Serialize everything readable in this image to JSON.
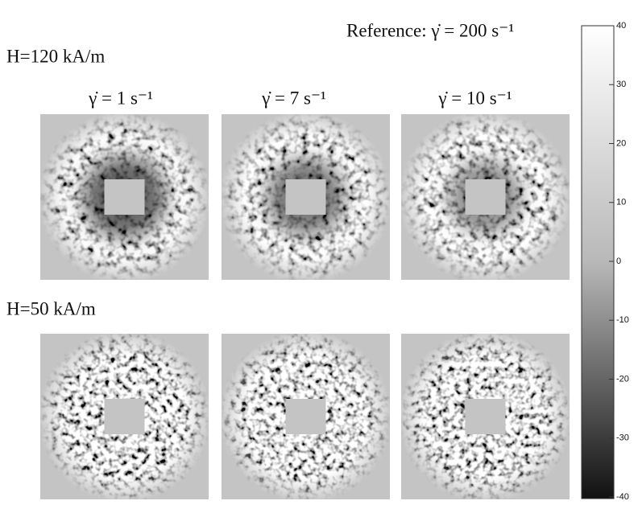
{
  "reference": "Reference:  γ̇ = 200 s⁻¹",
  "rows": [
    {
      "label": "H=120 kA/m"
    },
    {
      "label": "H=50 kA/m"
    }
  ],
  "columns": [
    "γ̇ = 1 s⁻¹",
    "γ̇ = 7 s⁻¹",
    "γ̇ = 10 s⁻¹"
  ],
  "colorbar": {
    "lim": [
      -40,
      40
    ],
    "ticks": [
      40,
      30,
      20,
      10,
      0,
      -10,
      -20,
      -30,
      -40
    ]
  }
}
